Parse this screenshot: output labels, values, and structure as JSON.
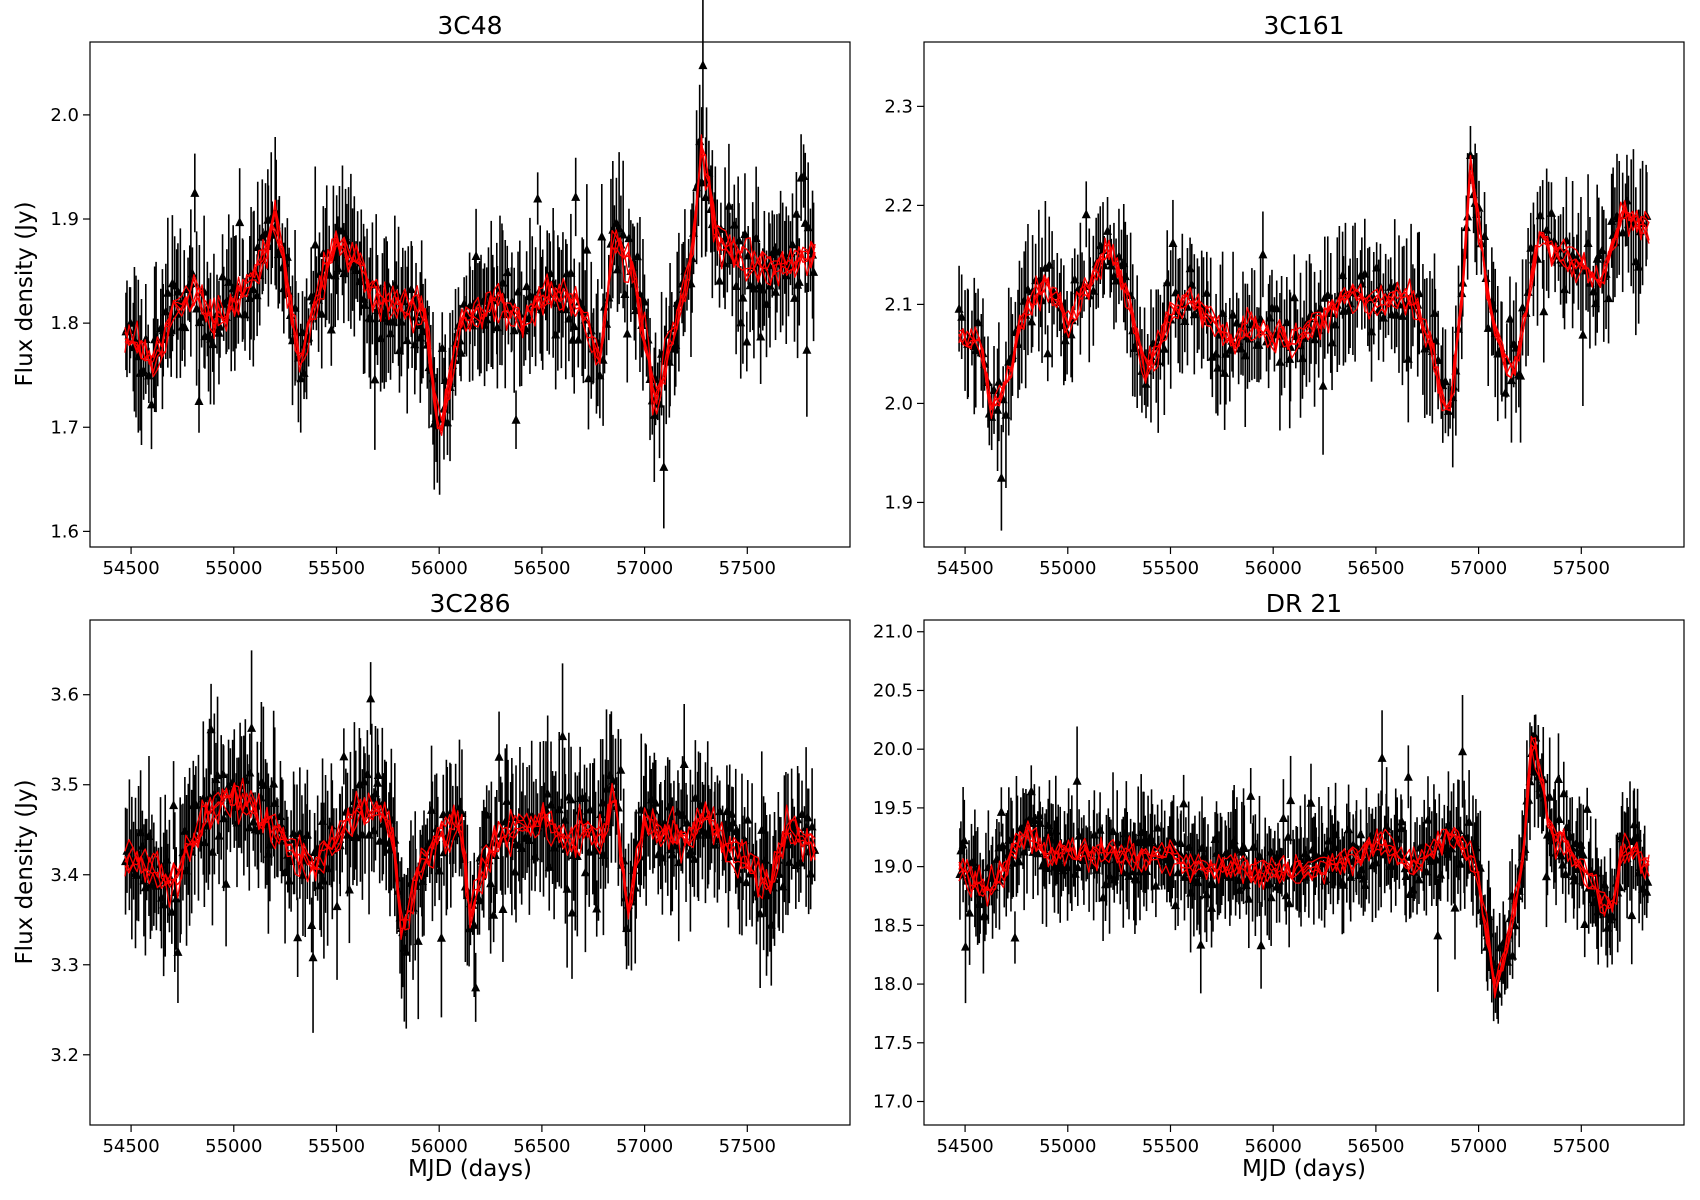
{
  "colors": {
    "observed": "#000000",
    "model": "#ff0000",
    "frame": "#000000",
    "background": "#ffffff"
  },
  "chart_data": [
    {
      "id": "p0",
      "type": "scatter",
      "title": "3C48",
      "xlabel": "",
      "ylabel": "Flux density (Jy)",
      "xlim": [
        54300,
        58000
      ],
      "ylim": [
        1.585,
        2.07
      ],
      "xticks": [
        54500,
        55000,
        55500,
        56000,
        56500,
        57000,
        57500
      ],
      "xtick_labels": [
        "54500",
        "55000",
        "55500",
        "56000",
        "56500",
        "57000",
        "57500"
      ],
      "yticks": [
        1.6,
        1.7,
        1.8,
        1.9,
        2.0
      ],
      "ytick_labels": [
        "1.6",
        "1.7",
        "1.8",
        "1.9",
        "2.0"
      ],
      "x_range": [
        54470,
        57830
      ],
      "series": [
        {
          "name": "observed flux (with error bars)",
          "marker": "triangle",
          "color": "#000000"
        },
        {
          "name": "model realizations",
          "style": "line",
          "color": "#ff0000"
        }
      ],
      "trend": [
        [
          54470,
          1.79
        ],
        [
          54600,
          1.76
        ],
        [
          54700,
          1.81
        ],
        [
          54800,
          1.83
        ],
        [
          54900,
          1.8
        ],
        [
          55000,
          1.82
        ],
        [
          55100,
          1.84
        ],
        [
          55200,
          1.9
        ],
        [
          55250,
          1.85
        ],
        [
          55320,
          1.76
        ],
        [
          55400,
          1.82
        ],
        [
          55500,
          1.88
        ],
        [
          55600,
          1.86
        ],
        [
          55700,
          1.82
        ],
        [
          55800,
          1.82
        ],
        [
          55930,
          1.81
        ],
        [
          56000,
          1.69
        ],
        [
          56100,
          1.8
        ],
        [
          56200,
          1.81
        ],
        [
          56300,
          1.82
        ],
        [
          56400,
          1.8
        ],
        [
          56500,
          1.83
        ],
        [
          56600,
          1.83
        ],
        [
          56700,
          1.81
        ],
        [
          56780,
          1.76
        ],
        [
          56850,
          1.88
        ],
        [
          56950,
          1.85
        ],
        [
          57050,
          1.72
        ],
        [
          57150,
          1.8
        ],
        [
          57230,
          1.86
        ],
        [
          57280,
          1.98
        ],
        [
          57350,
          1.88
        ],
        [
          57500,
          1.86
        ],
        [
          57650,
          1.85
        ],
        [
          57830,
          1.87
        ]
      ],
      "noise": 0.035,
      "error_bar": 0.05,
      "n_points": 380,
      "downward_triangles": 0
    },
    {
      "id": "p1",
      "type": "scatter",
      "title": "3C161",
      "xlabel": "",
      "ylabel": "",
      "xlim": [
        54300,
        58000
      ],
      "ylim": [
        1.855,
        2.365
      ],
      "xticks": [
        54500,
        55000,
        55500,
        56000,
        56500,
        57000,
        57500
      ],
      "xtick_labels": [
        "54500",
        "55000",
        "55500",
        "56000",
        "56500",
        "57000",
        "57500"
      ],
      "yticks": [
        1.9,
        2.0,
        2.1,
        2.2,
        2.3
      ],
      "ytick_labels": [
        "1.9",
        "2.0",
        "2.1",
        "2.2",
        "2.3"
      ],
      "x_range": [
        54470,
        57830
      ],
      "series": [
        {
          "name": "observed flux (with error bars)",
          "marker": "triangle",
          "color": "#000000"
        },
        {
          "name": "model realizations",
          "style": "line",
          "color": "#ff0000"
        }
      ],
      "trend": [
        [
          54470,
          2.07
        ],
        [
          54580,
          2.06
        ],
        [
          54630,
          1.99
        ],
        [
          54700,
          2.02
        ],
        [
          54800,
          2.1
        ],
        [
          54900,
          2.12
        ],
        [
          55000,
          2.08
        ],
        [
          55100,
          2.12
        ],
        [
          55200,
          2.16
        ],
        [
          55300,
          2.1
        ],
        [
          55380,
          2.03
        ],
        [
          55500,
          2.09
        ],
        [
          55600,
          2.11
        ],
        [
          55700,
          2.08
        ],
        [
          55800,
          2.06
        ],
        [
          55900,
          2.08
        ],
        [
          56000,
          2.07
        ],
        [
          56100,
          2.06
        ],
        [
          56200,
          2.08
        ],
        [
          56300,
          2.1
        ],
        [
          56400,
          2.11
        ],
        [
          56500,
          2.1
        ],
        [
          56600,
          2.11
        ],
        [
          56700,
          2.1
        ],
        [
          56780,
          2.05
        ],
        [
          56850,
          1.98
        ],
        [
          56920,
          2.1
        ],
        [
          56960,
          2.24
        ],
        [
          57000,
          2.18
        ],
        [
          57050,
          2.1
        ],
        [
          57150,
          2.03
        ],
        [
          57200,
          2.05
        ],
        [
          57250,
          2.12
        ],
        [
          57300,
          2.17
        ],
        [
          57400,
          2.15
        ],
        [
          57500,
          2.14
        ],
        [
          57600,
          2.12
        ],
        [
          57700,
          2.19
        ],
        [
          57830,
          2.18
        ]
      ],
      "noise": 0.03,
      "error_bar": 0.05,
      "n_points": 300,
      "downward_triangles": 0
    },
    {
      "id": "p2",
      "type": "scatter",
      "title": "3C286",
      "xlabel": "MJD (days)",
      "ylabel": "Flux density (Jy)",
      "xlim": [
        54300,
        58000
      ],
      "ylim": [
        3.122,
        3.683
      ],
      "xticks": [
        54500,
        55000,
        55500,
        56000,
        56500,
        57000,
        57500
      ],
      "xtick_labels": [
        "54500",
        "55000",
        "55500",
        "56000",
        "56500",
        "57000",
        "57500"
      ],
      "yticks": [
        3.2,
        3.3,
        3.4,
        3.5,
        3.6
      ],
      "ytick_labels": [
        "3.2",
        "3.3",
        "3.4",
        "3.5",
        "3.6"
      ],
      "x_range": [
        54470,
        57830
      ],
      "series": [
        {
          "name": "observed flux (with error bars)",
          "marker": "triangle",
          "color": "#000000"
        },
        {
          "name": "model realizations",
          "style": "line",
          "color": "#ff0000"
        }
      ],
      "trend": [
        [
          54470,
          3.42
        ],
        [
          54600,
          3.41
        ],
        [
          54700,
          3.39
        ],
        [
          54800,
          3.44
        ],
        [
          54900,
          3.47
        ],
        [
          55000,
          3.49
        ],
        [
          55100,
          3.47
        ],
        [
          55200,
          3.45
        ],
        [
          55300,
          3.42
        ],
        [
          55400,
          3.41
        ],
        [
          55500,
          3.44
        ],
        [
          55600,
          3.47
        ],
        [
          55700,
          3.48
        ],
        [
          55780,
          3.44
        ],
        [
          55820,
          3.33
        ],
        [
          55900,
          3.41
        ],
        [
          56000,
          3.44
        ],
        [
          56100,
          3.46
        ],
        [
          56150,
          3.36
        ],
        [
          56250,
          3.43
        ],
        [
          56350,
          3.45
        ],
        [
          56500,
          3.46
        ],
        [
          56600,
          3.44
        ],
        [
          56700,
          3.45
        ],
        [
          56800,
          3.44
        ],
        [
          56850,
          3.5
        ],
        [
          56920,
          3.36
        ],
        [
          57000,
          3.46
        ],
        [
          57100,
          3.45
        ],
        [
          57200,
          3.44
        ],
        [
          57300,
          3.47
        ],
        [
          57400,
          3.43
        ],
        [
          57500,
          3.42
        ],
        [
          57600,
          3.38
        ],
        [
          57700,
          3.45
        ],
        [
          57830,
          3.43
        ]
      ],
      "noise": 0.04,
      "error_bar": 0.06,
      "n_points": 420,
      "downward_triangles": 0
    },
    {
      "id": "p3",
      "type": "scatter",
      "title": "DR 21",
      "xlabel": "MJD (days)",
      "ylabel": "",
      "xlim": [
        54300,
        58000
      ],
      "ylim": [
        16.8,
        21.1
      ],
      "xticks": [
        54500,
        55000,
        55500,
        56000,
        56500,
        57000,
        57500
      ],
      "xtick_labels": [
        "54500",
        "55000",
        "55500",
        "56000",
        "56500",
        "57000",
        "57500"
      ],
      "yticks": [
        17.0,
        17.5,
        18.0,
        18.5,
        19.0,
        19.5,
        20.0,
        20.5,
        21.0
      ],
      "ytick_labels": [
        "17.0",
        "17.5",
        "18.0",
        "18.5",
        "19.0",
        "19.5",
        "20.0",
        "20.5",
        "21.0"
      ],
      "x_range": [
        54470,
        57830
      ],
      "series": [
        {
          "name": "observed flux (with error bars)",
          "marker": "triangle",
          "color": "#000000"
        },
        {
          "name": "model realizations",
          "style": "line",
          "color": "#ff0000"
        }
      ],
      "trend": [
        [
          54470,
          19.0
        ],
        [
          54600,
          18.8
        ],
        [
          54700,
          19.0
        ],
        [
          54800,
          19.3
        ],
        [
          54900,
          19.1
        ],
        [
          55000,
          19.1
        ],
        [
          55200,
          19.1
        ],
        [
          55400,
          19.1
        ],
        [
          55500,
          19.1
        ],
        [
          55600,
          19.0
        ],
        [
          55800,
          19.0
        ],
        [
          56000,
          18.95
        ],
        [
          56200,
          19.0
        ],
        [
          56400,
          19.05
        ],
        [
          56500,
          19.2
        ],
        [
          56600,
          19.1
        ],
        [
          56700,
          19.0
        ],
        [
          56800,
          19.2
        ],
        [
          56900,
          19.3
        ],
        [
          57000,
          18.9
        ],
        [
          57080,
          18.0
        ],
        [
          57150,
          18.4
        ],
        [
          57220,
          19.1
        ],
        [
          57260,
          20.1
        ],
        [
          57350,
          19.3
        ],
        [
          57500,
          19.0
        ],
        [
          57600,
          18.7
        ],
        [
          57650,
          18.6
        ],
        [
          57700,
          19.2
        ],
        [
          57830,
          19.0
        ]
      ],
      "noise": 0.25,
      "error_bar": 0.35,
      "n_points": 460,
      "downward_triangles": 0
    }
  ]
}
